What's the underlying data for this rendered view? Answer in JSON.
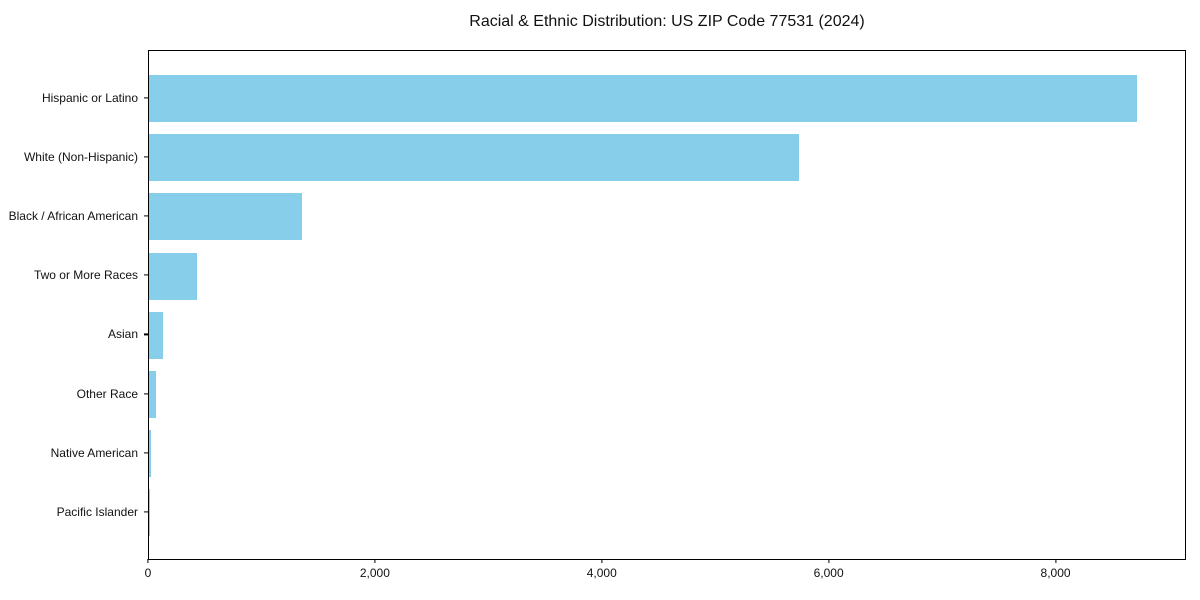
{
  "title": "Racial & Ethnic Distribution: US ZIP Code 77531 (2024)",
  "colors": {
    "bar": "#87CEEB",
    "axis": "#000000",
    "text": "#111111",
    "background": "#FFFFFF"
  },
  "chart_data": {
    "type": "bar",
    "orientation": "horizontal",
    "title": "Racial & Ethnic Distribution: US ZIP Code 77531 (2024)",
    "categories": [
      "Hispanic or Latino",
      "White (Non-Hispanic)",
      "Black / African American",
      "Two or More Races",
      "Asian",
      "Other Race",
      "Native American",
      "Pacific Islander"
    ],
    "values": [
      8710,
      5730,
      1350,
      420,
      120,
      60,
      15,
      5
    ],
    "xlabel": "",
    "ylabel": "",
    "xlim": [
      0,
      9150
    ],
    "x_ticks": [
      0,
      2000,
      4000,
      6000,
      8000
    ],
    "x_tick_labels": [
      "0",
      "2,000",
      "4,000",
      "6,000",
      "8,000"
    ],
    "bar_color": "#87CEEB",
    "grid": false,
    "legend": null,
    "category_order": "top-to-bottom"
  }
}
